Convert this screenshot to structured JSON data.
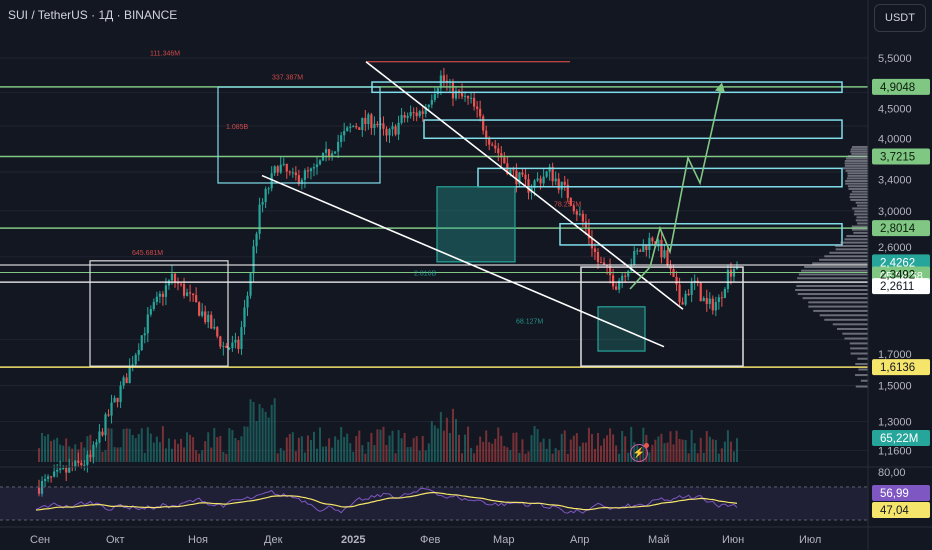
{
  "header": {
    "title": "SUI / TetherUS · 1Д · BINANCE",
    "currency_button": "USDT"
  },
  "chart_data": {
    "type": "candlestick",
    "symbol": "SUI / TetherUS",
    "interval": "1Д",
    "exchange": "BINANCE",
    "price_axis": {
      "ticks": [
        "5,5000",
        "4,5000",
        "4,0000",
        "3,4000",
        "3,0000",
        "2,6000",
        "1,7000",
        "1,5000",
        "1,3000",
        "1,1600"
      ]
    },
    "price_badges": [
      {
        "label": "4,9048",
        "bg": "#81c784",
        "fg": "#0b1f0c"
      },
      {
        "label": "3,7215",
        "bg": "#81c784",
        "fg": "#0b1f0c"
      },
      {
        "label": "2,8014",
        "bg": "#81c784",
        "fg": "#0b1f0c"
      },
      {
        "label": "2,4262",
        "sub": "05:54:58",
        "bg": "#26a69a",
        "fg": "#ffffff"
      },
      {
        "label": "2,3492",
        "bg": "#81c784",
        "fg": "#0b1f0c"
      },
      {
        "label": "2,2611",
        "bg": "#ffffff",
        "fg": "#131722"
      },
      {
        "label": "1,6136",
        "bg": "#f5e56b",
        "fg": "#131722"
      },
      {
        "label": "65,22M",
        "bg": "#26a69a",
        "fg": "#ffffff"
      }
    ],
    "time_axis": [
      "Сен",
      "Окт",
      "Ноя",
      "Дек",
      "2025",
      "Фев",
      "Мар",
      "Апр",
      "Май",
      "Июн",
      "Июл"
    ],
    "volume_annotations": [
      "111.346M",
      "337.387M",
      "1.085B",
      "645.681M",
      "78.257M",
      "68.127M",
      "2.816B"
    ],
    "rsi": {
      "levels": [
        "80,00"
      ],
      "badges": [
        {
          "label": "56,99",
          "bg": "#7e57c2",
          "fg": "#ffffff"
        },
        {
          "label": "47,04",
          "bg": "#f5e56b",
          "fg": "#131722"
        }
      ]
    },
    "colors": {
      "up": "#26a69a",
      "down": "#ef5350",
      "background": "#131722",
      "support": "#f5e56b",
      "resistance": "#81c784",
      "zones": "#80deea",
      "trend": "#ffffff"
    }
  }
}
